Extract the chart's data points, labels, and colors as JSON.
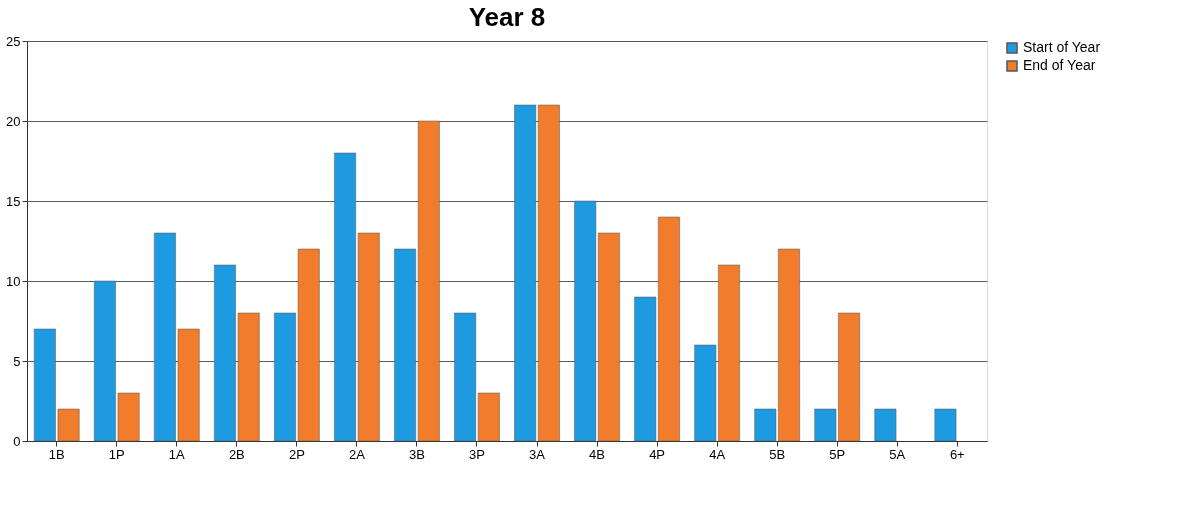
{
  "chart_data": {
    "type": "bar",
    "title": "Year 8",
    "categories": [
      "1B",
      "1P",
      "1A",
      "2B",
      "2P",
      "2A",
      "3B",
      "3P",
      "3A",
      "4B",
      "4P",
      "4A",
      "5B",
      "5P",
      "5A",
      "6+"
    ],
    "series": [
      {
        "name": "Start of Year",
        "color": "#1e9be0",
        "values": [
          7,
          10,
          13,
          11,
          8,
          18,
          12,
          8,
          21,
          15,
          9,
          6,
          2,
          2,
          2,
          2
        ]
      },
      {
        "name": "End of Year",
        "color": "#f07c2c",
        "values": [
          2,
          3,
          7,
          8,
          12,
          13,
          20,
          3,
          21,
          13,
          14,
          11,
          12,
          8,
          null,
          null
        ]
      }
    ],
    "ylim": [
      0,
      25
    ],
    "yticks": [
      0,
      5,
      10,
      15,
      20,
      25
    ],
    "grid": "y",
    "legend": "right"
  }
}
